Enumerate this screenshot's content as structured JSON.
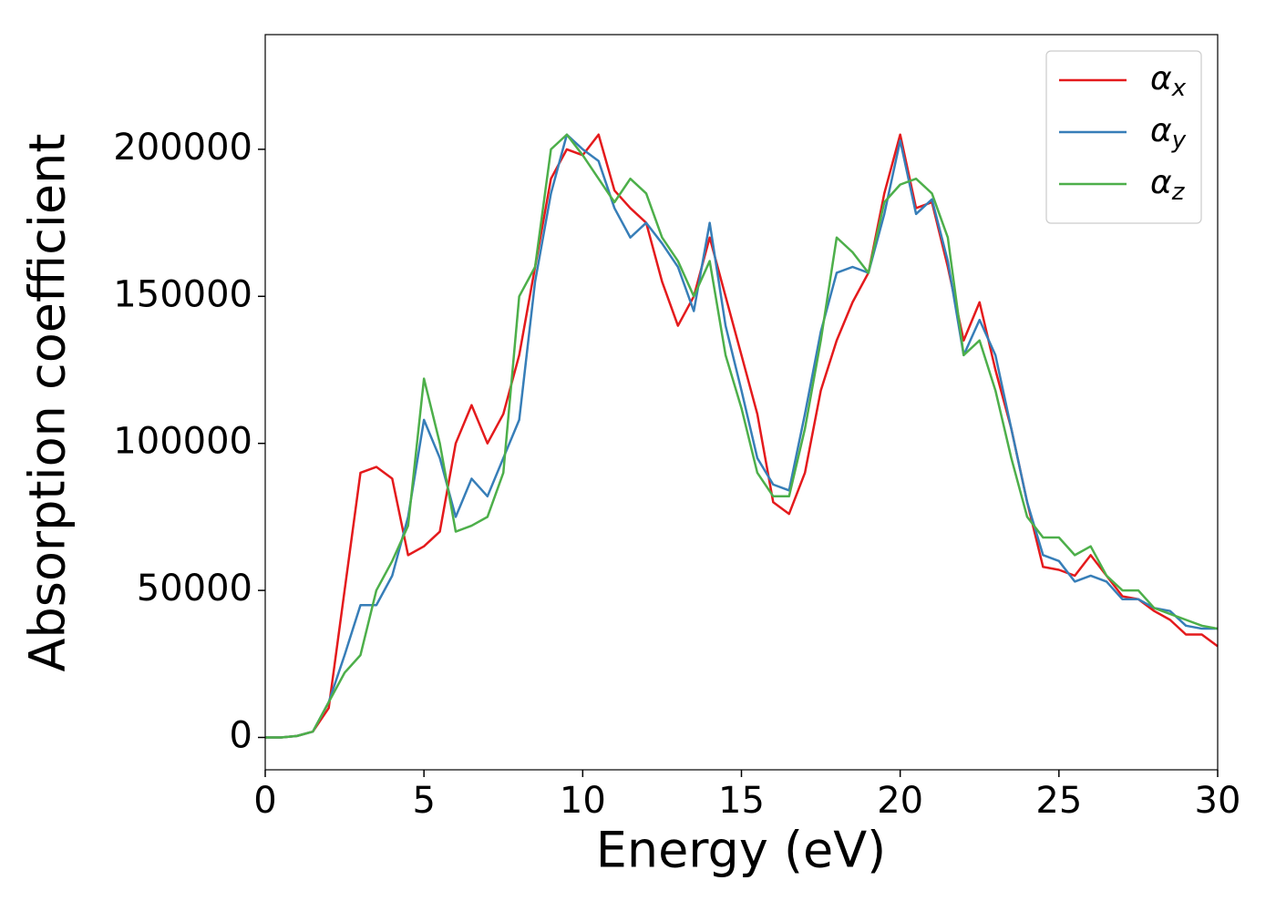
{
  "chart_data": {
    "type": "line",
    "xlabel": "Energy (eV)",
    "ylabel": "Absorption coefficient",
    "x": [
      0,
      0.5,
      1,
      1.5,
      2,
      2.5,
      3,
      3.5,
      4,
      4.5,
      5,
      5.5,
      6,
      6.5,
      7,
      7.5,
      8,
      8.5,
      9,
      9.5,
      10,
      10.5,
      11,
      11.5,
      12,
      12.5,
      13,
      13.5,
      14,
      14.5,
      15,
      15.5,
      16,
      16.5,
      17,
      17.5,
      18,
      18.5,
      19,
      19.5,
      20,
      20.5,
      21,
      21.5,
      22,
      22.5,
      23,
      23.5,
      24,
      24.5,
      25,
      25.5,
      26,
      26.5,
      27,
      27.5,
      28,
      28.5,
      29,
      29.5,
      30
    ],
    "series": [
      {
        "name": "αx",
        "color": "#e41a1c",
        "values": [
          0,
          0,
          500,
          2000,
          10000,
          50000,
          90000,
          92000,
          88000,
          62000,
          65000,
          70000,
          100000,
          113000,
          100000,
          110000,
          130000,
          160000,
          190000,
          200000,
          198000,
          205000,
          186000,
          180000,
          175000,
          155000,
          140000,
          150000,
          170000,
          150000,
          130000,
          110000,
          80000,
          76000,
          90000,
          118000,
          135000,
          148000,
          158000,
          185000,
          205000,
          180000,
          182000,
          160000,
          135000,
          148000,
          125000,
          105000,
          80000,
          58000,
          57000,
          55000,
          62000,
          55000,
          48000,
          47000,
          43000,
          40000,
          35000,
          35000,
          31000
        ]
      },
      {
        "name": "αy",
        "color": "#377eb8",
        "values": [
          0,
          0,
          500,
          2000,
          12000,
          28000,
          45000,
          45000,
          55000,
          75000,
          108000,
          95000,
          75000,
          88000,
          82000,
          95000,
          108000,
          155000,
          185000,
          205000,
          200000,
          196000,
          180000,
          170000,
          175000,
          168000,
          160000,
          145000,
          175000,
          140000,
          118000,
          95000,
          86000,
          84000,
          110000,
          138000,
          158000,
          160000,
          158000,
          178000,
          203000,
          178000,
          183000,
          162000,
          130000,
          142000,
          130000,
          105000,
          80000,
          62000,
          60000,
          53000,
          55000,
          53000,
          47000,
          47000,
          44000,
          43000,
          38000,
          37000,
          37000
        ]
      },
      {
        "name": "αz",
        "color": "#4daf4a",
        "values": [
          0,
          0,
          500,
          2000,
          12000,
          22000,
          28000,
          50000,
          60000,
          72000,
          122000,
          100000,
          70000,
          72000,
          75000,
          90000,
          150000,
          160000,
          200000,
          205000,
          198000,
          190000,
          182000,
          190000,
          185000,
          170000,
          162000,
          150000,
          162000,
          130000,
          112000,
          90000,
          82000,
          82000,
          105000,
          135000,
          170000,
          165000,
          158000,
          182000,
          188000,
          190000,
          185000,
          170000,
          130000,
          135000,
          118000,
          95000,
          75000,
          68000,
          68000,
          62000,
          65000,
          55000,
          50000,
          50000,
          44000,
          42000,
          40000,
          38000,
          37000
        ]
      }
    ],
    "xlim": [
      0,
      30
    ],
    "ylim": [
      -11000,
      239000
    ],
    "xticks": [
      0,
      5,
      10,
      15,
      20,
      25,
      30
    ],
    "yticks": [
      0,
      50000,
      100000,
      150000,
      200000
    ],
    "legend": "upper right",
    "grid": false
  }
}
